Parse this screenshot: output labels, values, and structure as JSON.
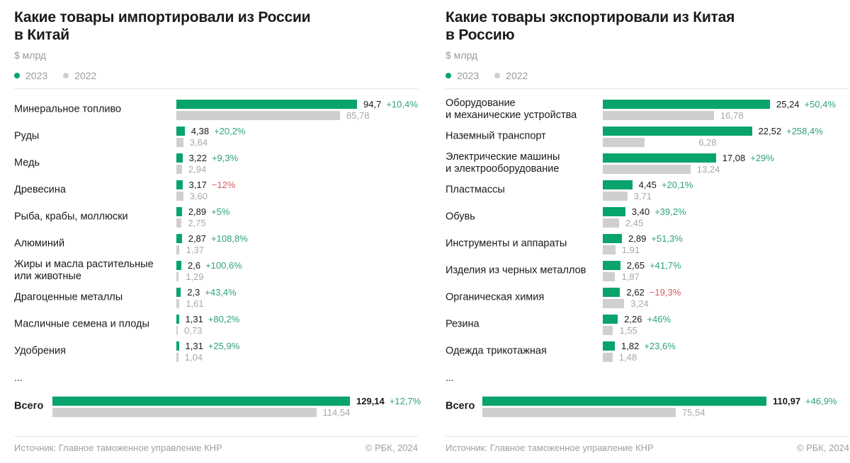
{
  "colors": {
    "y2023": "#08a46c",
    "y2022": "#cfcfcf",
    "positive": "#2ea27a",
    "negative": "#d15a5e"
  },
  "chart_data": [
    {
      "type": "bar",
      "orientation": "horizontal",
      "title": "Какие товары импортировали из России\nв Китай",
      "unit": "$ млрд",
      "legend": [
        "2023",
        "2022"
      ],
      "legend_placement": "top-left",
      "categories": [
        "Минеральное топливо",
        "Руды",
        "Медь",
        "Древесина",
        "Рыба, крабы, моллюски",
        "Алюминий",
        "Жиры и масла растительные\nили животные",
        "Драгоценные металлы",
        "Масличные семена и плоды",
        "Удобрения"
      ],
      "series": [
        {
          "name": "2023",
          "values": [
            94.7,
            4.38,
            3.22,
            3.17,
            2.89,
            2.87,
            2.6,
            2.3,
            1.31,
            1.31
          ],
          "labels": [
            "94,7",
            "4,38",
            "3,22",
            "3,17",
            "2,89",
            "2,87",
            "2,6",
            "2,3",
            "1,31",
            "1,31"
          ]
        },
        {
          "name": "2022",
          "values": [
            85.78,
            3.64,
            2.94,
            3.6,
            2.75,
            1.37,
            1.29,
            1.61,
            0.73,
            1.04
          ],
          "labels": [
            "85,78",
            "3,64",
            "2,94",
            "3,60",
            "2,75",
            "1,37",
            "1,29",
            "1,61",
            "0,73",
            "1,04"
          ]
        }
      ],
      "change": [
        "+10,4%",
        "+20,2%",
        "+9,3%",
        "−12%",
        "+5%",
        "+108,8%",
        "+100,6%",
        "+43,4%",
        "+80,2%",
        "+25,9%"
      ],
      "ellipsis": "...",
      "total": {
        "label": "Всего",
        "v2023": 129.14,
        "v2022": 114.54,
        "label2023": "129,14",
        "label2022": "114,54",
        "change": "+12,7%"
      },
      "source": "Источник: Главное таможенное управление КНР",
      "copyright": "© РБК, 2024"
    },
    {
      "type": "bar",
      "orientation": "horizontal",
      "title": "Какие товары экспортировали из Китая\nв Россию",
      "unit": "$ млрд",
      "legend": [
        "2023",
        "2022"
      ],
      "legend_placement": "top-left",
      "categories": [
        "Оборудование\nи механические устройства",
        "Наземный транспорт",
        "Электрические машины\nи электрооборудование",
        "Пластмассы",
        "Обувь",
        "Инструменты и аппараты",
        "Изделия из черных металлов",
        "Органическая химия",
        "Резина",
        "Одежда трикотажная"
      ],
      "series": [
        {
          "name": "2023",
          "values": [
            25.24,
            22.52,
            17.08,
            4.45,
            3.4,
            2.89,
            2.65,
            2.62,
            2.26,
            1.82
          ],
          "labels": [
            "25,24",
            "22,52",
            "17,08",
            "4,45",
            "3,40",
            "2,89",
            "2,65",
            "2,62",
            "2,26",
            "1,82"
          ]
        },
        {
          "name": "2022",
          "values": [
            16.78,
            6.28,
            13.24,
            3.71,
            2.45,
            1.91,
            1.87,
            3.24,
            1.55,
            1.48
          ],
          "labels": [
            "16,78",
            "6,28",
            "13,24",
            "3,71",
            "2,45",
            "1,91",
            "1,87",
            "3,24",
            "1,55",
            "1,48"
          ]
        }
      ],
      "change": [
        "+50,4%",
        "+258,4%",
        "+29%",
        "+20,1%",
        "+39,2%",
        "+51,3%",
        "+41,7%",
        "−19,3%",
        "+46%",
        "+23,6%"
      ],
      "ellipsis": "...",
      "total": {
        "label": "Всего",
        "v2023": 110.97,
        "v2022": 75.54,
        "label2023": "110,97",
        "label2022": "75,54",
        "change": "+46,9%"
      },
      "source": "Источник: Главное таможенное управление КНР",
      "copyright": "© РБК, 2024"
    }
  ]
}
